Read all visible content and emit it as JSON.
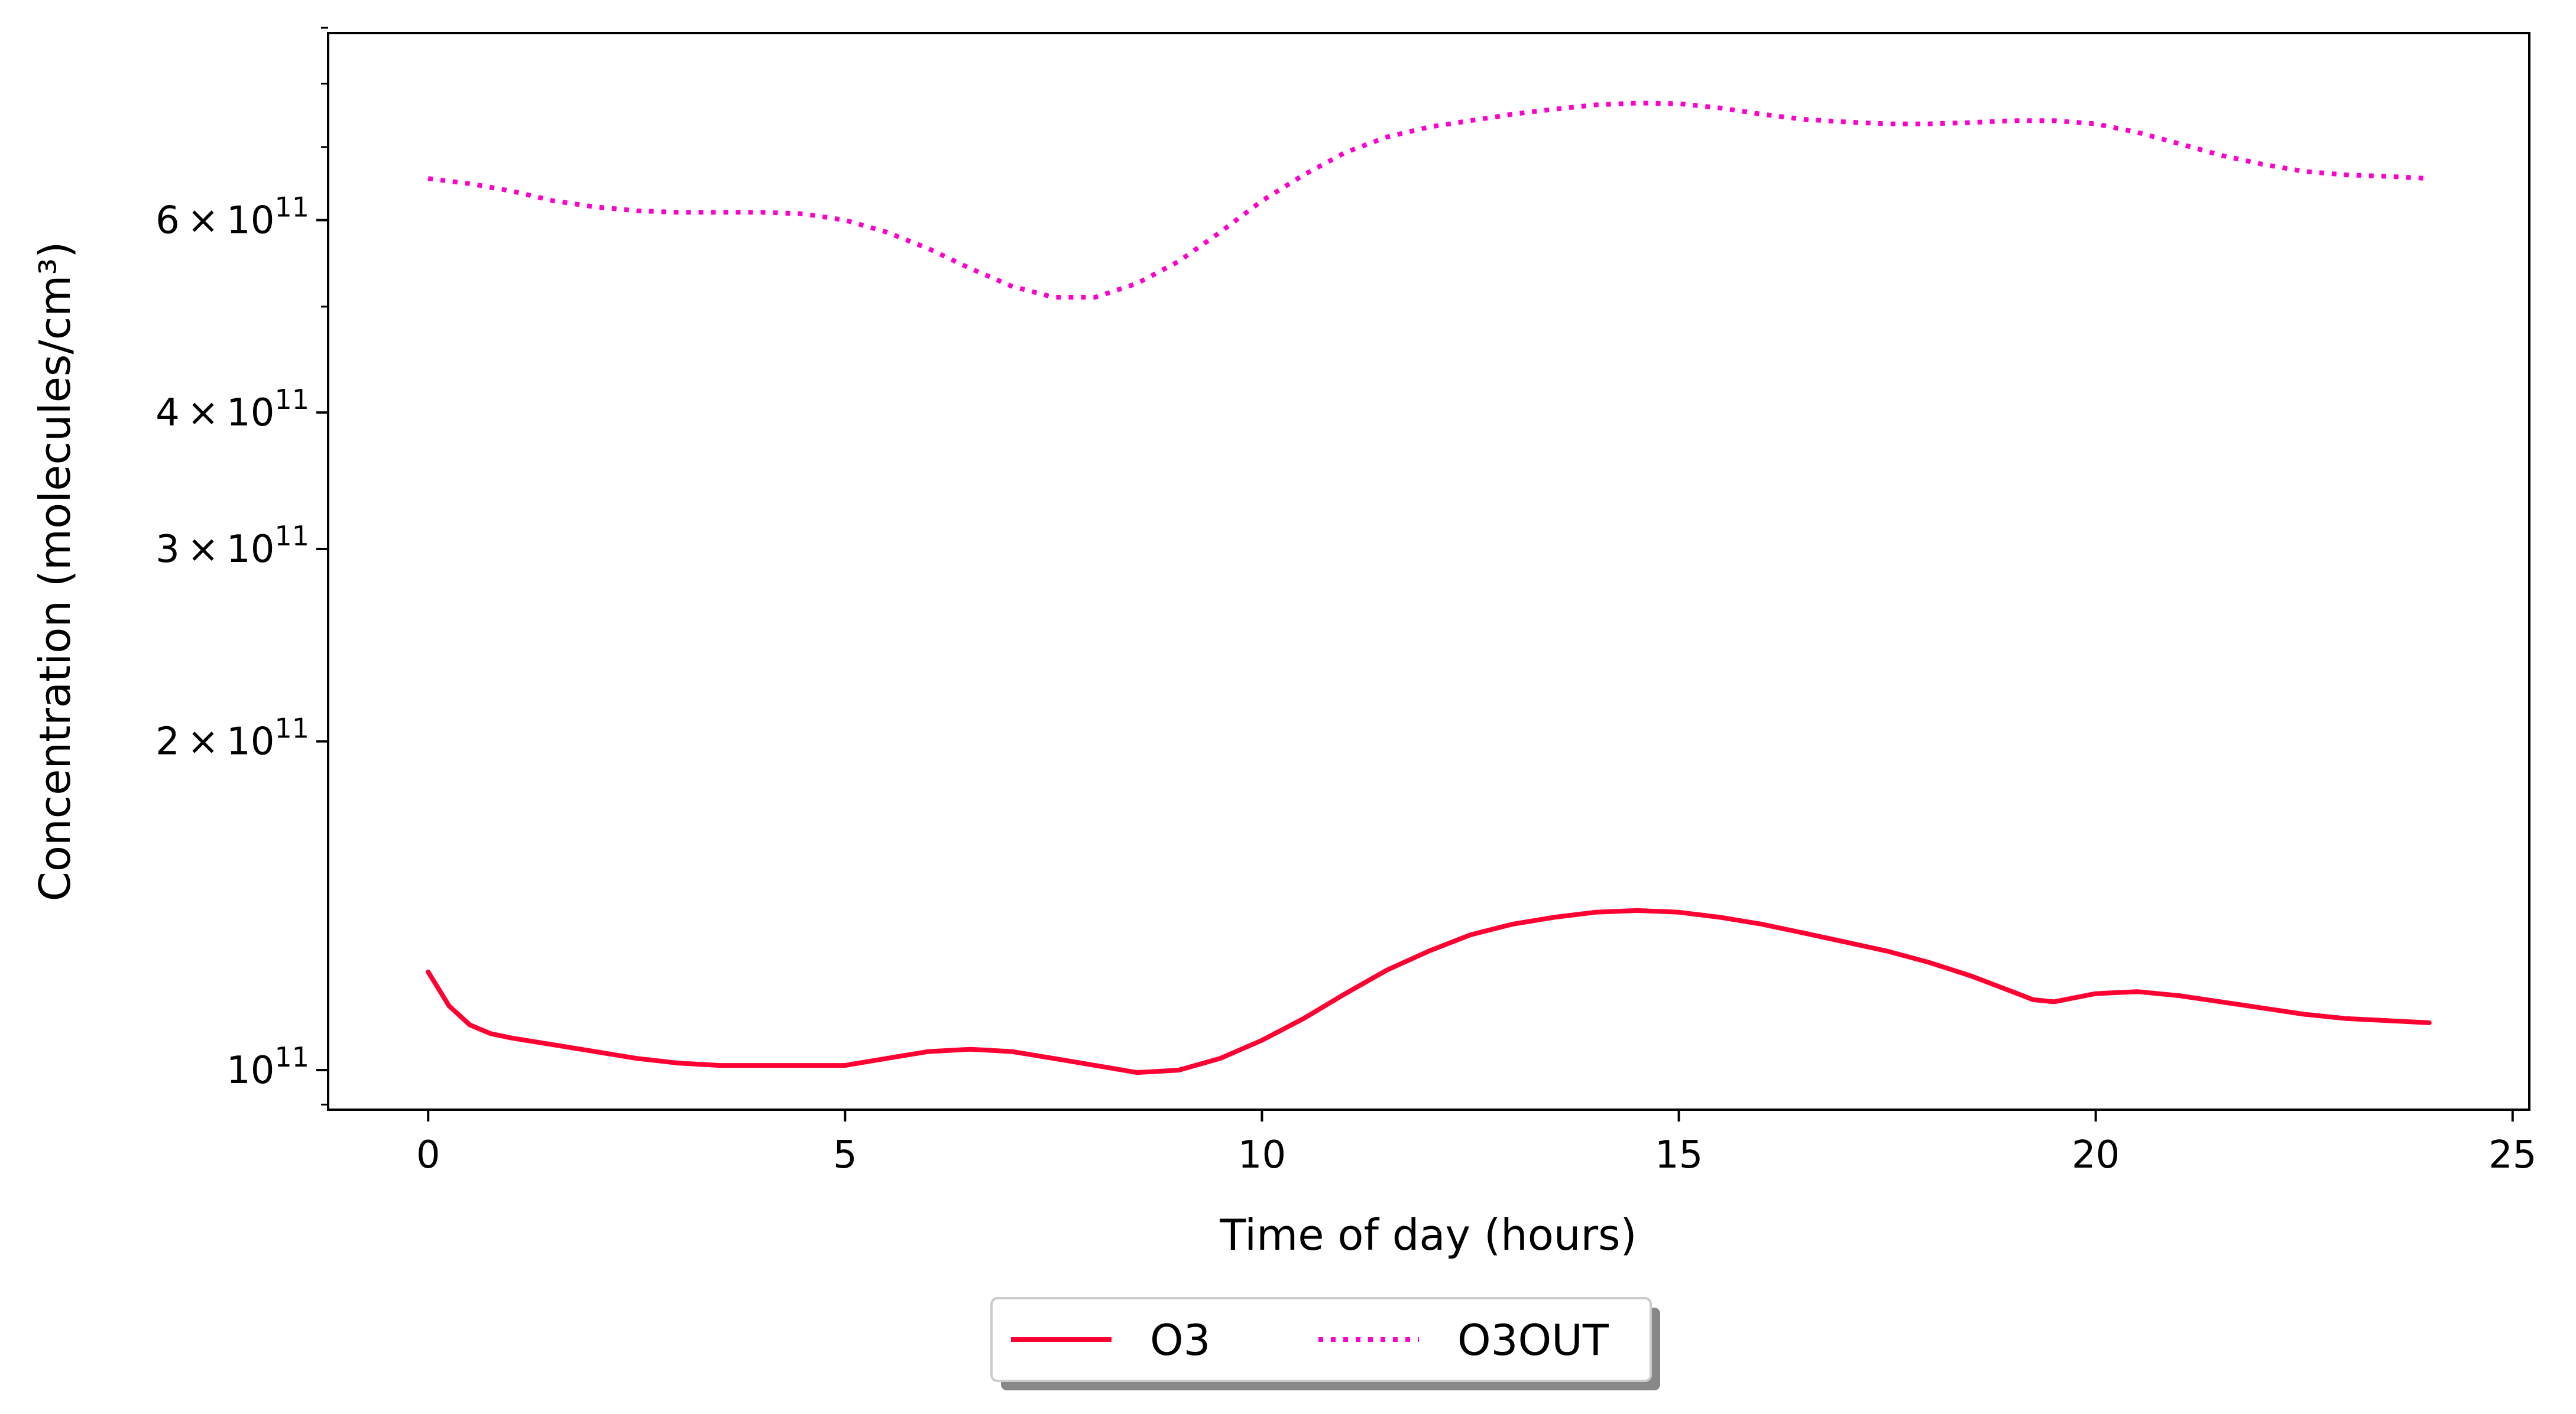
{
  "chart_data": {
    "type": "line",
    "xlabel": "Time of day (hours)",
    "ylabel": "Concentration (molecules/cm³)",
    "yscale": "log",
    "xlim": [
      -1.2,
      25.2
    ],
    "ylim": [
      92000000000.0,
      890000000000.0
    ],
    "xticks": [
      {
        "value": 0,
        "label": "0"
      },
      {
        "value": 5,
        "label": "5"
      },
      {
        "value": 10,
        "label": "10"
      },
      {
        "value": 15,
        "label": "15"
      },
      {
        "value": 20,
        "label": "20"
      },
      {
        "value": 25,
        "label": "25"
      }
    ],
    "yticks_major": [
      {
        "value": 100000000000.0,
        "mant": "",
        "exp": "11"
      },
      {
        "value": 200000000000.0,
        "mant": "2",
        "exp": "11"
      },
      {
        "value": 300000000000.0,
        "mant": "3",
        "exp": "11"
      },
      {
        "value": 400000000000.0,
        "mant": "4",
        "exp": "11"
      },
      {
        "value": 600000000000.0,
        "mant": "6",
        "exp": "11"
      }
    ],
    "yticks_minor": [
      500000000000.0,
      700000000000.0,
      800000000000.0,
      900000000000.0
    ],
    "grid": false,
    "legend": {
      "placement": "bottom-center-outside",
      "ncol": 2
    },
    "series": [
      {
        "name": "O3",
        "color": "#ff0033",
        "style": "solid",
        "x": [
          0,
          0.25,
          0.5,
          0.75,
          1,
          1.5,
          2,
          2.5,
          3,
          3.5,
          4,
          4.5,
          5,
          5.5,
          6,
          6.5,
          7,
          7.5,
          8,
          8.5,
          9,
          9.5,
          10,
          10.5,
          11,
          11.5,
          12,
          12.5,
          13,
          13.5,
          14,
          14.5,
          15,
          15.5,
          16,
          16.5,
          17,
          17.5,
          18,
          18.5,
          19,
          19.25,
          19.5,
          19.75,
          20,
          20.5,
          21,
          21.5,
          22,
          22.5,
          23,
          23.5,
          24
        ],
        "y": [
          123000000000.0,
          114500000000.0,
          110000000000.0,
          108000000000.0,
          107000000000.0,
          105500000000.0,
          104000000000.0,
          102500000000.0,
          101500000000.0,
          101000000000.0,
          101000000000.0,
          101000000000.0,
          101000000000.0,
          102500000000.0,
          104000000000.0,
          104500000000.0,
          104000000000.0,
          102500000000.0,
          101000000000.0,
          99500000000.0,
          100000000000.0,
          102500000000.0,
          106500000000.0,
          111500000000.0,
          117500000000.0,
          123500000000.0,
          128500000000.0,
          133000000000.0,
          136000000000.0,
          138000000000.0,
          139500000000.0,
          140000000000.0,
          139500000000.0,
          138000000000.0,
          136000000000.0,
          133500000000.0,
          131000000000.0,
          128500000000.0,
          125500000000.0,
          122000000000.0,
          118000000000.0,
          116000000000.0,
          115500000000.0,
          116500000000.0,
          117500000000.0,
          118000000000.0,
          117000000000.0,
          115500000000.0,
          114000000000.0,
          112500000000.0,
          111500000000.0,
          111000000000.0,
          110500000000.0
        ]
      },
      {
        "name": "O3OUT",
        "color": "#ff00cc",
        "style": "dotted",
        "x": [
          0,
          0.5,
          1,
          1.5,
          2,
          2.5,
          3,
          3.5,
          4,
          4.5,
          5,
          5.5,
          6,
          6.5,
          7,
          7.5,
          8,
          8.5,
          9,
          9.5,
          10,
          10.5,
          11,
          11.5,
          12,
          12.5,
          13,
          13.5,
          14,
          14.5,
          15,
          15.5,
          16,
          16.5,
          17,
          17.5,
          18,
          18.5,
          19,
          19.5,
          20,
          20.5,
          21,
          21.5,
          22,
          22.5,
          23,
          23.5,
          24
        ],
        "y": [
          655000000000.0,
          648000000000.0,
          638000000000.0,
          625000000000.0,
          617000000000.0,
          612000000000.0,
          610000000000.0,
          610000000000.0,
          610000000000.0,
          608000000000.0,
          600000000000.0,
          585000000000.0,
          565000000000.0,
          542000000000.0,
          522000000000.0,
          510000000000.0,
          510000000000.0,
          525000000000.0,
          550000000000.0,
          585000000000.0,
          625000000000.0,
          660000000000.0,
          692000000000.0,
          715000000000.0,
          730000000000.0,
          740000000000.0,
          750000000000.0,
          758000000000.0,
          765000000000.0,
          768000000000.0,
          767000000000.0,
          760000000000.0,
          750000000000.0,
          742000000000.0,
          738000000000.0,
          735000000000.0,
          735000000000.0,
          737000000000.0,
          740000000000.0,
          740000000000.0,
          735000000000.0,
          722000000000.0,
          705000000000.0,
          688000000000.0,
          675000000000.0,
          665000000000.0,
          660000000000.0,
          658000000000.0,
          655000000000.0
        ]
      }
    ]
  }
}
